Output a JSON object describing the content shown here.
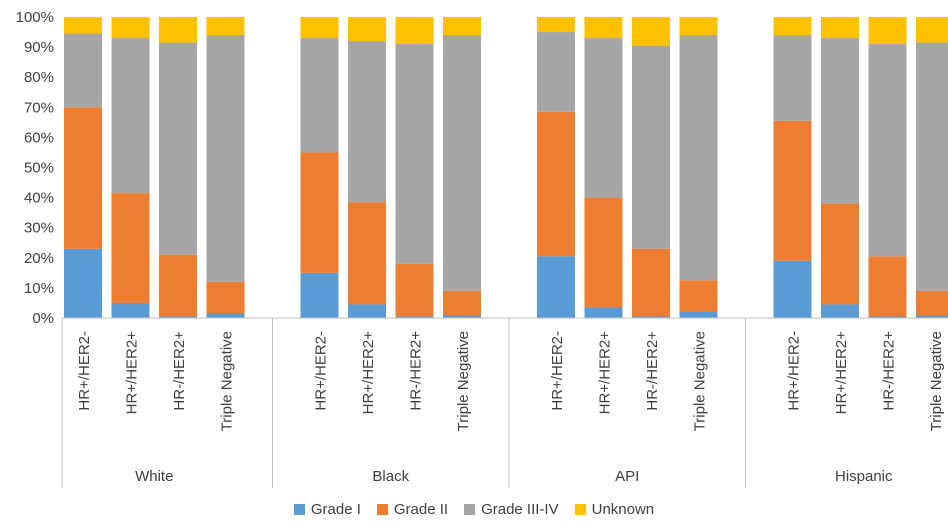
{
  "chart_data": {
    "type": "bar",
    "stacked": true,
    "normalized": true,
    "groups": [
      {
        "name": "White",
        "categories": [
          "HR+/HER2-",
          "HR+/HER2+",
          "HR-/HER2+",
          "Triple Negative"
        ]
      },
      {
        "name": "Black",
        "categories": [
          "HR+/HER2-",
          "HR+/HER2+",
          "HR-/HER2+",
          "Triple Negative"
        ]
      },
      {
        "name": "API",
        "categories": [
          "HR+/HER2-",
          "HR+/HER2+",
          "HR-/HER2+",
          "Triple Negative"
        ]
      },
      {
        "name": "Hispanic",
        "categories": [
          "HR+/HER2-",
          "HR+/HER2+",
          "HR-/HER2+",
          "Triple Negative"
        ]
      }
    ],
    "series": [
      {
        "name": "Grade I",
        "color": "#5b9bd5",
        "values": [
          23,
          5,
          0.5,
          1.5,
          15,
          4.5,
          0.5,
          1,
          20.5,
          3.5,
          0.5,
          2,
          19,
          4.5,
          0.5,
          1
        ]
      },
      {
        "name": "Grade II",
        "color": "#ed7d31",
        "values": [
          47,
          36.5,
          20.5,
          10.5,
          40,
          34,
          17.5,
          8,
          48,
          36.5,
          22.5,
          10.5,
          46.5,
          33.5,
          20,
          8
        ]
      },
      {
        "name": "Grade III-IV",
        "color": "#a5a5a5",
        "values": [
          24.5,
          51.5,
          70.5,
          82,
          38,
          53.5,
          73,
          85,
          26.5,
          53,
          67.5,
          81.5,
          28.5,
          55,
          70.5,
          82.5
        ]
      },
      {
        "name": "Unknown",
        "color": "#ffc000",
        "values": [
          5.5,
          7,
          8.5,
          6,
          7,
          8,
          9,
          6,
          5,
          7,
          9.5,
          6,
          6,
          7,
          9,
          8.5
        ]
      }
    ],
    "ylim": [
      0,
      100
    ],
    "yticks": [
      "0%",
      "10%",
      "20%",
      "30%",
      "40%",
      "50%",
      "60%",
      "70%",
      "80%",
      "90%",
      "100%"
    ],
    "legend_position": "bottom",
    "grid": false
  }
}
